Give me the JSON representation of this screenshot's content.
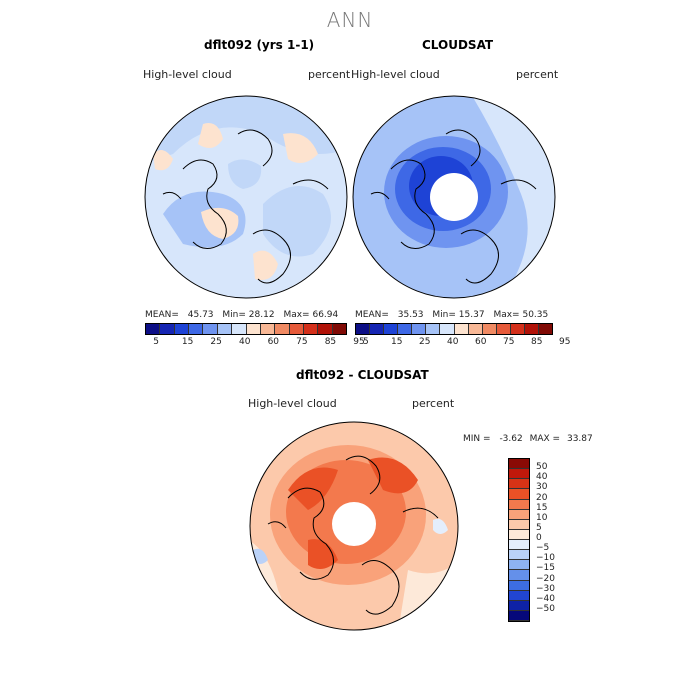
{
  "season": "ANN",
  "panels": [
    {
      "title": "dflt092 (yrs 1-1)",
      "field_label": "High-level cloud",
      "units": "percent",
      "mean_label": "MEAN=",
      "mean": "45.73",
      "min_label": "Min=",
      "min": "28.12",
      "max_label": "Max=",
      "max": "66.94"
    },
    {
      "title": "CLOUDSAT",
      "field_label": "High-level cloud",
      "units": "percent",
      "mean_label": "MEAN=",
      "mean": "35.53",
      "min_label": "Min=",
      "min": "15.37",
      "max_label": "Max=",
      "max": "50.35"
    }
  ],
  "diff_panel": {
    "title": "dflt092 - CLOUDSAT",
    "field_label": "High-level cloud",
    "units": "percent",
    "min_label": "MIN =",
    "min": "-3.62",
    "max_label": "MAX =",
    "max": "33.87"
  },
  "abs_colorbar": {
    "colors": [
      "#0d0f86",
      "#1525b3",
      "#1e43d6",
      "#3e68e6",
      "#6f94f0",
      "#a6c3f7",
      "#d7e6fb",
      "#fde3cf",
      "#f8b896",
      "#f08a63",
      "#e65a3a",
      "#d4301b",
      "#b11208",
      "#800a05"
    ],
    "labels": [
      "5",
      "15",
      "25",
      "40",
      "60",
      "75",
      "85",
      "95"
    ]
  },
  "diff_colorbar": {
    "colors": [
      "#8a0a05",
      "#c0180b",
      "#d83316",
      "#ea5126",
      "#f3794d",
      "#f9a27a",
      "#fcc9ab",
      "#fde9d9",
      "#e4eefc",
      "#bad2f8",
      "#8eb3f2",
      "#6490ea",
      "#3d6de1",
      "#2145d2",
      "#0e22a6",
      "#06087a"
    ],
    "labels": [
      "50",
      "40",
      "30",
      "20",
      "15",
      "10",
      "5",
      "0",
      "−5",
      "−10",
      "−15",
      "−20",
      "−30",
      "−40",
      "−50"
    ]
  }
}
